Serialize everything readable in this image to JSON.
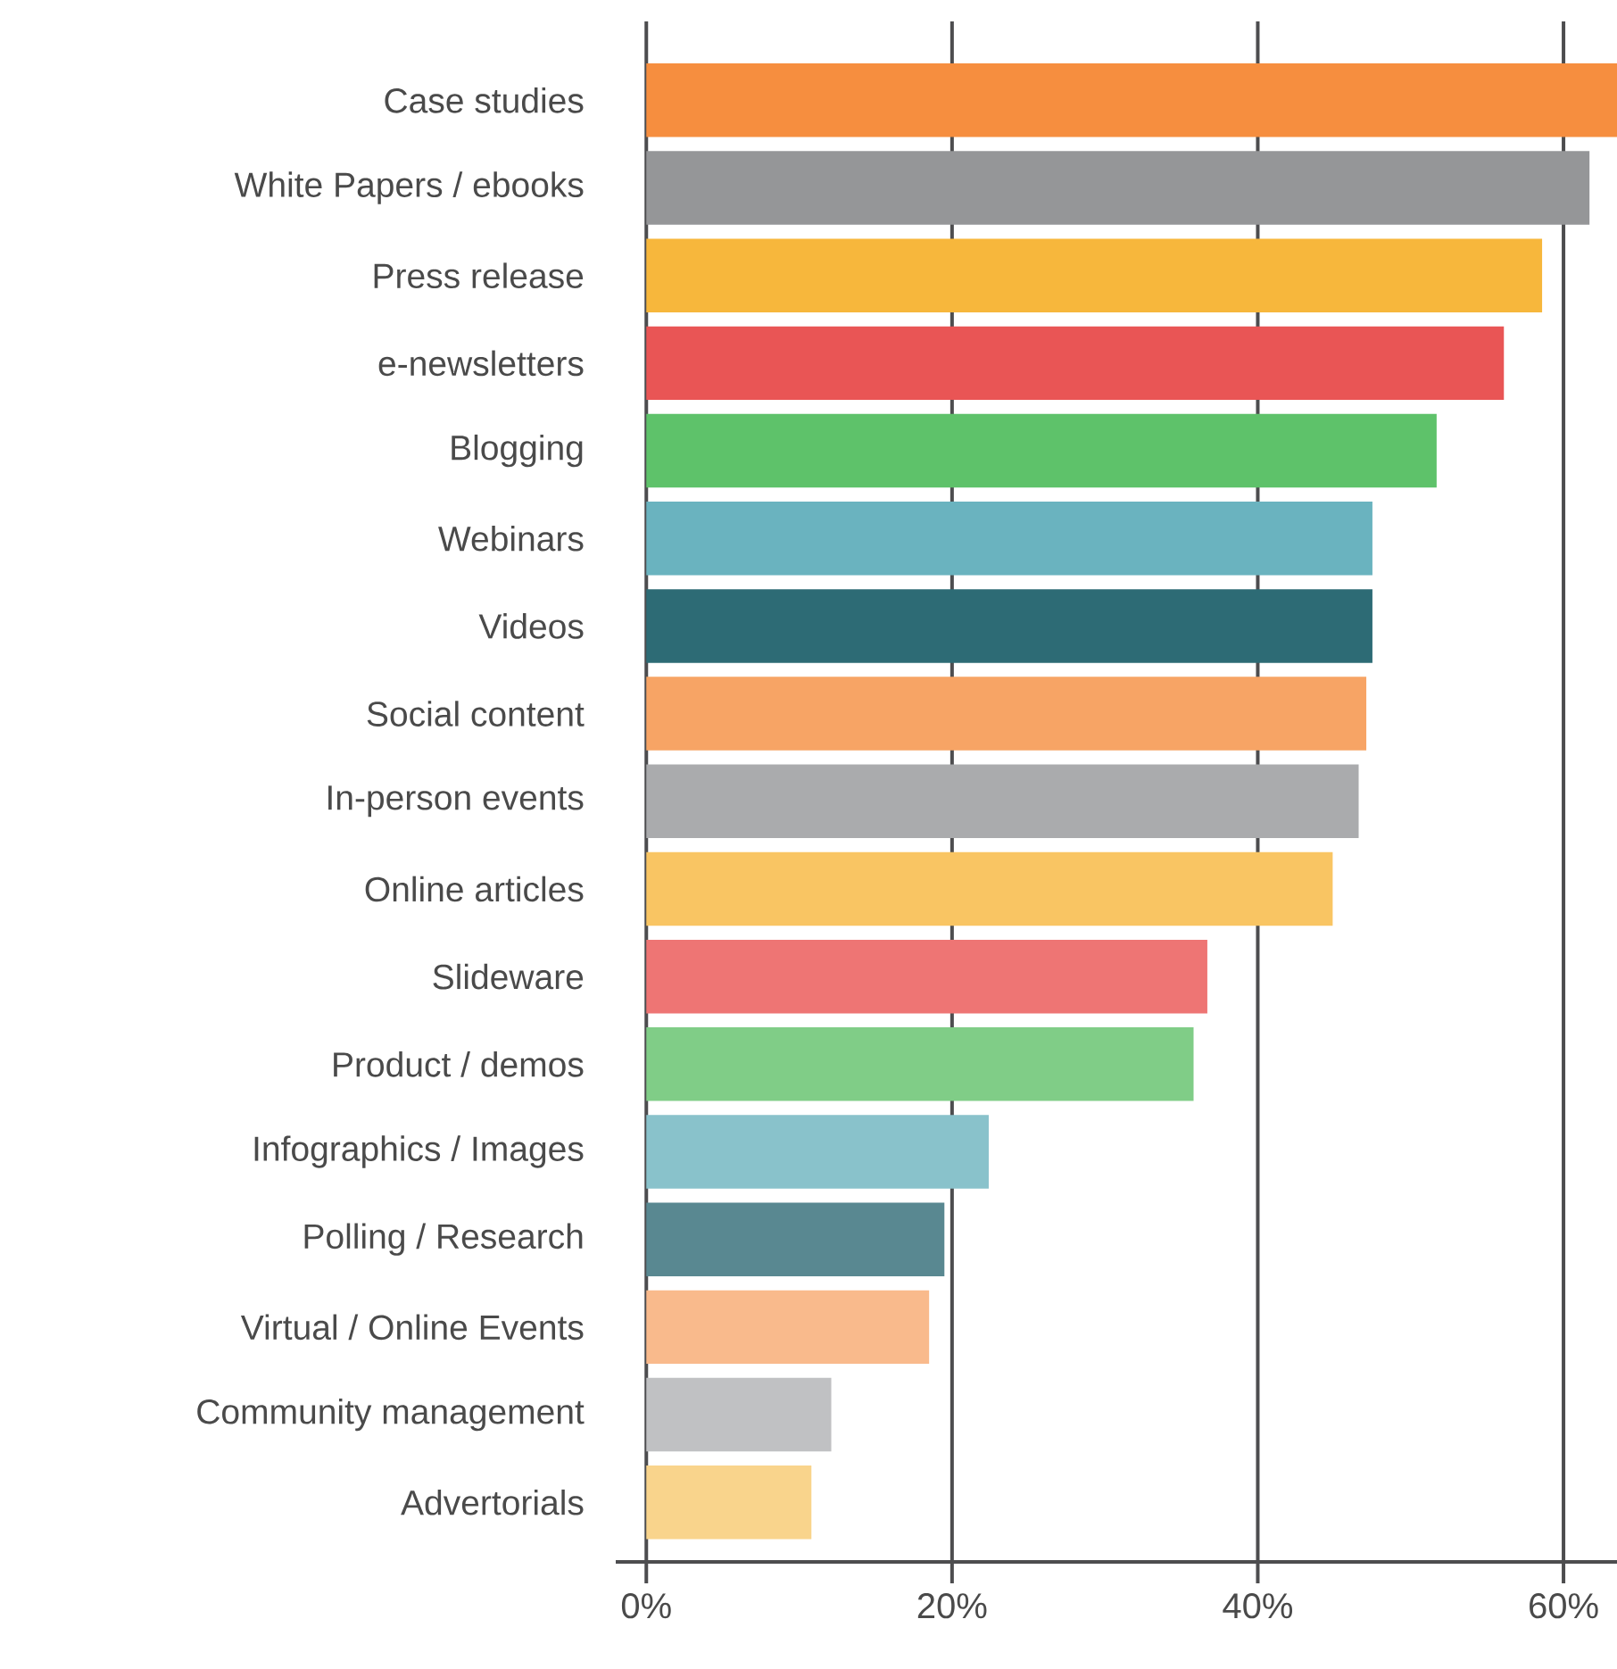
{
  "chart_data": {
    "type": "bar",
    "orientation": "horizontal",
    "categories": [
      "Case studies",
      "White Papers / ebooks",
      "Press release",
      "e-newsletters",
      "Blogging",
      "Webinars",
      "Videos",
      "Social content",
      "In-person events",
      "Online articles",
      "Slideware",
      "Product / demos",
      "Infographics / Images",
      "Polling / Research",
      "Virtual / Online Events",
      "Community management",
      "Advertorials"
    ],
    "values": [
      63.5,
      61.7,
      58.6,
      56.1,
      51.7,
      47.5,
      47.5,
      47.1,
      46.6,
      44.9,
      36.7,
      35.8,
      22.4,
      19.5,
      18.5,
      12.1,
      10.8
    ],
    "colors": [
      "#f68e3f",
      "#959698",
      "#f7b73c",
      "#e95555",
      "#5ec26a",
      "#6ab3bf",
      "#2d6b75",
      "#f7a465",
      "#aaabad",
      "#f9c563",
      "#ee7574",
      "#80cd87",
      "#89c2cb",
      "#598891",
      "#f9ba8c",
      "#c0c1c3",
      "#f9d48c"
    ],
    "xlim": [
      -2,
      63.5
    ],
    "xticks": [
      {
        "value": 0,
        "label": "0%"
      },
      {
        "value": 20,
        "label": "20%"
      },
      {
        "value": 40,
        "label": "40%"
      },
      {
        "value": 60,
        "label": "60%"
      }
    ],
    "grid": "x"
  }
}
